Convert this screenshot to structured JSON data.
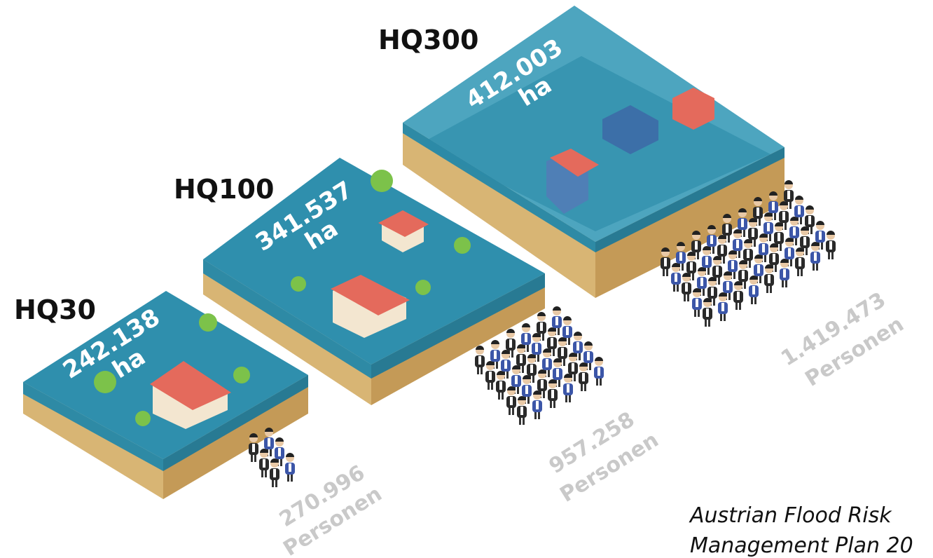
{
  "scenarios": [
    {
      "label": "HQ30",
      "area": "242.138",
      "area_unit": "ha",
      "persons": "270.996",
      "persons_unit": "Personen"
    },
    {
      "label": "HQ100",
      "area": "341.537",
      "area_unit": "ha",
      "persons": "957.258",
      "persons_unit": "Personen"
    },
    {
      "label": "HQ300",
      "area": "412.003",
      "area_unit": "ha",
      "persons": "1.419.473",
      "persons_unit": "Personen"
    }
  ],
  "source": {
    "lines": [
      "Austrian Flood Risk",
      "Management Plan 20"
    ]
  }
}
